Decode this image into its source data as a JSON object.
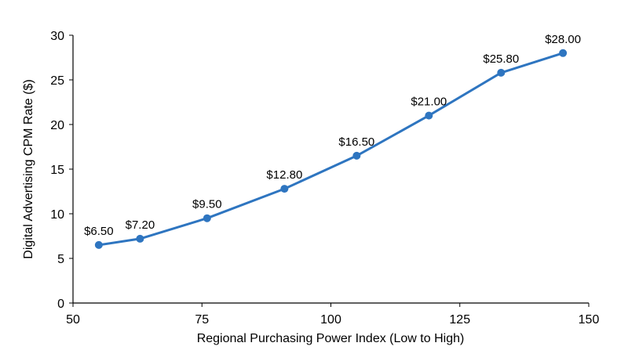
{
  "chart_data": {
    "type": "line",
    "title": "",
    "xlabel": "Regional Purchasing Power Index (Low to High)",
    "ylabel": "Digital Advertising CPM Rate ($)",
    "xlim": [
      50,
      150
    ],
    "ylim": [
      0,
      30
    ],
    "xticks": [
      50,
      75,
      100,
      125,
      150
    ],
    "yticks": [
      0,
      5,
      10,
      15,
      20,
      25,
      30
    ],
    "grid": false,
    "legend": "none",
    "line_color": "#2E75C0",
    "series": [
      {
        "x": [
          55,
          63,
          76,
          91,
          105,
          119,
          133,
          145
        ],
        "y": [
          6.5,
          7.2,
          9.5,
          12.8,
          16.5,
          21.0,
          25.8,
          28.0
        ],
        "labels": [
          "$6.50",
          "$7.20",
          "$9.50",
          "$12.80",
          "$16.50",
          "$21.00",
          "$25.80",
          "$28.00"
        ]
      }
    ]
  }
}
